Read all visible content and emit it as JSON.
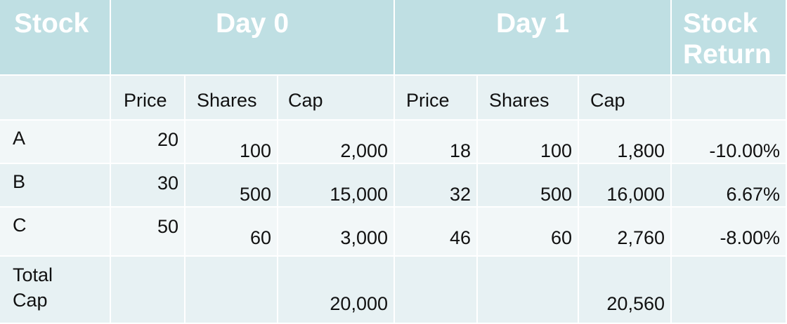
{
  "header": {
    "stock": "Stock",
    "day0": "Day 0",
    "day1": "Day 1",
    "return_line1": "Stock",
    "return_line2": "Return"
  },
  "subheader": {
    "price": "Price",
    "shares": "Shares",
    "cap": "Cap"
  },
  "rows": [
    {
      "stock": "A",
      "price0": "20",
      "shares0": "100",
      "cap0": "2,000",
      "price1": "18",
      "shares1": "100",
      "cap1": "1,800",
      "return": "-10.00%"
    },
    {
      "stock": "B",
      "price0": "30",
      "shares0": "500",
      "cap0": "15,000",
      "price1": "32",
      "shares1": "500",
      "cap1": "16,000",
      "return": "6.67%"
    },
    {
      "stock": "C",
      "price0": "50",
      "shares0": "60",
      "cap0": "3,000",
      "price1": "46",
      "shares1": "60",
      "cap1": "2,760",
      "return": "-8.00%"
    }
  ],
  "total": {
    "label_line1": "Total",
    "label_line2": "Cap",
    "cap0": "20,000",
    "cap1": "20,560"
  },
  "colors": {
    "header_bg": "#bfdfe3",
    "row_dark": "#e7f1f3",
    "row_light": "#f2f7f8"
  }
}
